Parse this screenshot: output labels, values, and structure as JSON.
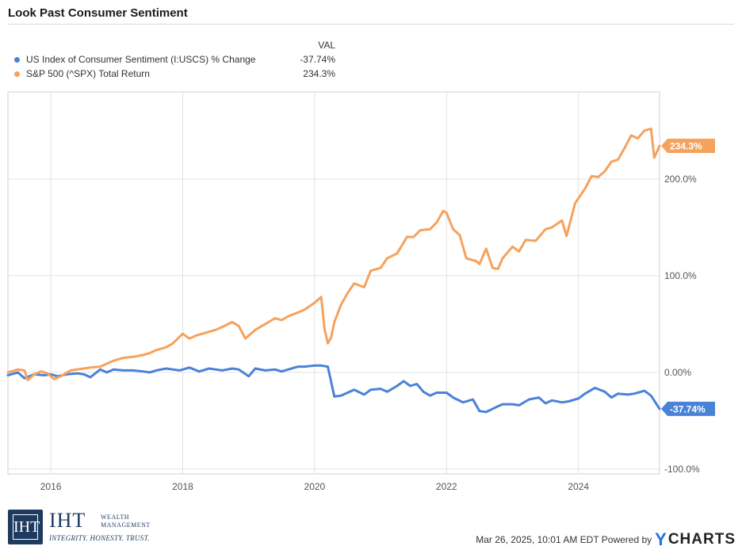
{
  "title": "Look Past Consumer Sentiment",
  "legend": {
    "header": "VAL",
    "items": [
      {
        "label": "US Index of Consumer Sentiment (I:USCS) % Change",
        "value": "-37.74%",
        "color": "#4a82d8"
      },
      {
        "label": "S&P 500 (^SPX) Total Return",
        "value": "234.3%",
        "color": "#f5a25d"
      }
    ]
  },
  "footer": {
    "timestamp": "Mar 26, 2025, 10:01 AM EDT Powered by",
    "brand": "CHARTS",
    "brand_prefix": "Y"
  },
  "logo": {
    "mark": "IHT",
    "name": "IHT",
    "sub1": "WEALTH",
    "sub2": "MANAGEMENT",
    "tagline": "INTEGRITY. HONESTY. TRUST."
  },
  "chart_data": {
    "type": "line",
    "title": "Look Past Consumer Sentiment",
    "xlabel": "",
    "ylabel": "",
    "xlim": [
      2015.35,
      2025.23
    ],
    "ylim": [
      -105,
      290
    ],
    "x_ticks": [
      "2016",
      "2018",
      "2020",
      "2022",
      "2024"
    ],
    "y_ticks": [
      "-100.0%",
      "0.00%",
      "100.0%",
      "200.0%"
    ],
    "grid": true,
    "legend_position": "top-left",
    "series": [
      {
        "name": "US Index of Consumer Sentiment (I:USCS) % Change",
        "color": "#4a82d8",
        "end_label": "-37.74%",
        "x": [
          2015.35,
          2015.5,
          2015.6,
          2015.75,
          2015.9,
          2016.0,
          2016.1,
          2016.25,
          2016.4,
          2016.5,
          2016.6,
          2016.75,
          2016.85,
          2016.95,
          2017.1,
          2017.25,
          2017.4,
          2017.5,
          2017.6,
          2017.75,
          2017.85,
          2017.95,
          2018.1,
          2018.25,
          2018.4,
          2018.5,
          2018.6,
          2018.75,
          2018.85,
          2019.0,
          2019.1,
          2019.25,
          2019.4,
          2019.5,
          2019.6,
          2019.75,
          2019.85,
          2020.0,
          2020.1,
          2020.2,
          2020.3,
          2020.4,
          2020.5,
          2020.6,
          2020.75,
          2020.85,
          2021.0,
          2021.1,
          2021.25,
          2021.35,
          2021.45,
          2021.55,
          2021.65,
          2021.75,
          2021.85,
          2022.0,
          2022.1,
          2022.25,
          2022.4,
          2022.5,
          2022.6,
          2022.75,
          2022.85,
          2023.0,
          2023.1,
          2023.25,
          2023.4,
          2023.5,
          2023.6,
          2023.75,
          2023.85,
          2024.0,
          2024.1,
          2024.25,
          2024.4,
          2024.5,
          2024.6,
          2024.75,
          2024.85,
          2025.0,
          2025.1,
          2025.23
        ],
        "y": [
          -3,
          0,
          -6,
          -2,
          -3,
          -2,
          -4,
          -2,
          -1,
          -2,
          -5,
          3,
          0,
          3,
          2,
          2,
          1,
          0,
          2,
          4,
          3,
          2,
          5,
          1,
          4,
          3,
          2,
          4,
          3,
          -4,
          4,
          2,
          3,
          1,
          3,
          6,
          6,
          7,
          7,
          6,
          -25,
          -24,
          -21,
          -18,
          -23,
          -18,
          -17,
          -20,
          -14,
          -9,
          -14,
          -12,
          -20,
          -24,
          -21,
          -21,
          -26,
          -31,
          -28,
          -40,
          -41,
          -36,
          -33,
          -33,
          -34,
          -28,
          -26,
          -32,
          -29,
          -31,
          -30,
          -27,
          -22,
          -16,
          -20,
          -26,
          -22,
          -23,
          -22,
          -19,
          -24,
          -37.74
        ]
      },
      {
        "name": "S&P 500 (^SPX) Total Return",
        "color": "#f5a25d",
        "end_label": "234.3%",
        "x": [
          2015.35,
          2015.5,
          2015.6,
          2015.65,
          2015.75,
          2015.85,
          2015.95,
          2016.05,
          2016.15,
          2016.3,
          2016.5,
          2016.6,
          2016.75,
          2016.85,
          2016.95,
          2017.1,
          2017.25,
          2017.4,
          2017.5,
          2017.6,
          2017.75,
          2017.85,
          2018.0,
          2018.1,
          2018.2,
          2018.3,
          2018.5,
          2018.6,
          2018.75,
          2018.85,
          2018.95,
          2019.0,
          2019.1,
          2019.25,
          2019.4,
          2019.5,
          2019.6,
          2019.75,
          2019.85,
          2020.0,
          2020.1,
          2020.15,
          2020.2,
          2020.25,
          2020.3,
          2020.4,
          2020.5,
          2020.6,
          2020.75,
          2020.85,
          2021.0,
          2021.1,
          2021.25,
          2021.4,
          2021.5,
          2021.6,
          2021.75,
          2021.85,
          2021.95,
          2022.0,
          2022.1,
          2022.2,
          2022.3,
          2022.45,
          2022.5,
          2022.6,
          2022.7,
          2022.78,
          2022.85,
          2023.0,
          2023.1,
          2023.2,
          2023.35,
          2023.5,
          2023.6,
          2023.75,
          2023.82,
          2023.95,
          2024.0,
          2024.1,
          2024.2,
          2024.3,
          2024.4,
          2024.5,
          2024.6,
          2024.7,
          2024.8,
          2024.9,
          2025.0,
          2025.1,
          2025.15,
          2025.23
        ],
        "y": [
          0,
          3,
          2,
          -8,
          -2,
          1,
          -1,
          -7,
          -4,
          2,
          4,
          5,
          6,
          9,
          12,
          15,
          16,
          18,
          20,
          23,
          26,
          30,
          40,
          35,
          38,
          40,
          44,
          47,
          52,
          48,
          35,
          38,
          44,
          50,
          56,
          54,
          58,
          62,
          65,
          72,
          78,
          45,
          30,
          36,
          52,
          70,
          82,
          92,
          88,
          105,
          108,
          118,
          123,
          140,
          140,
          147,
          148,
          155,
          167,
          165,
          148,
          142,
          118,
          115,
          112,
          128,
          108,
          107,
          118,
          130,
          125,
          137,
          136,
          148,
          150,
          157,
          141,
          175,
          180,
          190,
          203,
          202,
          208,
          218,
          220,
          232,
          245,
          242,
          250,
          252,
          222,
          234.3
        ]
      }
    ]
  }
}
